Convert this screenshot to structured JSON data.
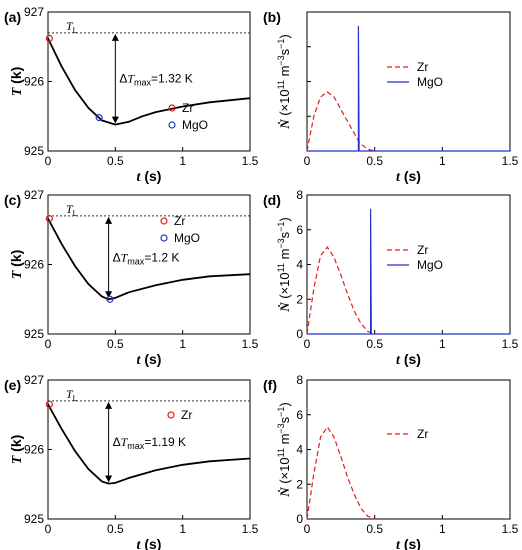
{
  "chart_data": [
    {
      "panel": "(a)",
      "type": "line",
      "xlabel": "t (s)",
      "ylabel": "T (k)",
      "xlim": [
        0,
        1.5
      ],
      "ylim": [
        925,
        927
      ],
      "xticks": [
        "0",
        "0.5",
        "1",
        "1.5"
      ],
      "yticks": [
        "925",
        "926",
        "927"
      ],
      "series": [
        {
          "color": "#000000",
          "style": "solid",
          "x": [
            0,
            0.1,
            0.2,
            0.3,
            0.4,
            0.5,
            0.6,
            0.7,
            0.8,
            1.0,
            1.2,
            1.5
          ],
          "y": [
            926.62,
            926.22,
            925.88,
            925.62,
            925.44,
            925.38,
            925.42,
            925.5,
            925.56,
            925.64,
            925.7,
            925.76
          ]
        }
      ],
      "ref_line": {
        "y": 926.7,
        "label": "TL"
      },
      "markers": [
        {
          "name": "Zr",
          "x": 0.01,
          "y": 926.62,
          "color": "#e41a1c"
        },
        {
          "name": "MgO",
          "x": 0.38,
          "y": 925.48,
          "color": "#2233cc"
        }
      ],
      "annotation": {
        "text": "ΔTmax=1.32 K",
        "x": 0.5,
        "y_top": 926.7,
        "y_bottom": 925.38
      }
    },
    {
      "panel": "(b)",
      "type": "line",
      "xlabel": "t (s)",
      "ylabel": "Ṅ (×10^11 m^-3 s^-1)",
      "xlim": [
        0,
        1.5
      ],
      "ylim": [
        0,
        8
      ],
      "xticks": [
        "0",
        "0.5",
        "1",
        "1.5"
      ],
      "yticks": [],
      "series": [
        {
          "name": "Zr",
          "color": "#e41a1c",
          "style": "dashed",
          "x": [
            0,
            0.05,
            0.1,
            0.15,
            0.2,
            0.25,
            0.3,
            0.35,
            0.38,
            0.4,
            0.45,
            0.5
          ],
          "y": [
            0,
            2.0,
            3.1,
            3.4,
            3.1,
            2.4,
            1.7,
            1.0,
            0.6,
            0.4,
            0.1,
            0
          ]
        },
        {
          "name": "MgO",
          "color": "#2233cc",
          "style": "solid",
          "x": [
            0,
            0.38,
            0.38,
            0.385,
            1.5
          ],
          "y": [
            0,
            0,
            7.2,
            0,
            0
          ]
        }
      ]
    },
    {
      "panel": "(c)",
      "type": "line",
      "xlabel": "t (s)",
      "ylabel": "T (k)",
      "xlim": [
        0,
        1.5
      ],
      "ylim": [
        925,
        927
      ],
      "xticks": [
        "0",
        "0.5",
        "1",
        "1.5"
      ],
      "yticks": [
        "925",
        "926",
        "927"
      ],
      "series": [
        {
          "color": "#000000",
          "style": "solid",
          "x": [
            0,
            0.1,
            0.2,
            0.3,
            0.4,
            0.45,
            0.5,
            0.6,
            0.8,
            1.0,
            1.2,
            1.5
          ],
          "y": [
            926.66,
            926.3,
            925.98,
            925.72,
            925.54,
            925.5,
            925.52,
            925.6,
            925.7,
            925.78,
            925.83,
            925.86
          ]
        }
      ],
      "ref_line": {
        "y": 926.7,
        "label": "TL"
      },
      "markers": [
        {
          "name": "Zr",
          "x": 0.01,
          "y": 926.66,
          "color": "#e41a1c"
        },
        {
          "name": "MgO",
          "x": 0.46,
          "y": 925.5,
          "color": "#2233cc"
        }
      ],
      "annotation": {
        "text": "ΔTmax=1.2 K",
        "x": 0.45,
        "y_top": 926.7,
        "y_bottom": 925.5
      }
    },
    {
      "panel": "(d)",
      "type": "line",
      "xlabel": "t (s)",
      "ylabel": "Ṅ (×10^11 m^-3 s^-1)",
      "xlim": [
        0,
        1.5
      ],
      "ylim": [
        0,
        8
      ],
      "xticks": [
        "0",
        "0.5",
        "1",
        "1.5"
      ],
      "yticks": [
        "0",
        "2",
        "4",
        "6",
        "8"
      ],
      "series": [
        {
          "name": "Zr",
          "color": "#e41a1c",
          "style": "dashed",
          "x": [
            0,
            0.05,
            0.1,
            0.15,
            0.2,
            0.25,
            0.3,
            0.35,
            0.4,
            0.45,
            0.5
          ],
          "y": [
            0,
            2.6,
            4.5,
            5.0,
            4.4,
            3.4,
            2.3,
            1.3,
            0.6,
            0.15,
            0
          ]
        },
        {
          "name": "MgO",
          "color": "#2233cc",
          "style": "solid",
          "x": [
            0,
            0.47,
            0.47,
            0.475,
            1.5
          ],
          "y": [
            0,
            0,
            7.2,
            0,
            0
          ]
        }
      ]
    },
    {
      "panel": "(e)",
      "type": "line",
      "xlabel": "t (s)",
      "ylabel": "T (k)",
      "xlim": [
        0,
        1.5
      ],
      "ylim": [
        925,
        927
      ],
      "xticks": [
        "0",
        "0.5",
        "1",
        "1.5"
      ],
      "yticks": [
        "925",
        "926",
        "927"
      ],
      "series": [
        {
          "color": "#000000",
          "style": "solid",
          "x": [
            0,
            0.1,
            0.2,
            0.3,
            0.4,
            0.45,
            0.5,
            0.6,
            0.8,
            1.0,
            1.2,
            1.5
          ],
          "y": [
            926.65,
            926.3,
            925.98,
            925.72,
            925.54,
            925.51,
            925.52,
            925.59,
            925.7,
            925.78,
            925.83,
            925.87
          ]
        }
      ],
      "ref_line": {
        "y": 926.7,
        "label": "TL"
      },
      "markers": [
        {
          "name": "Zr",
          "x": 0.01,
          "y": 926.65,
          "color": "#e41a1c"
        }
      ],
      "annotation": {
        "text": "ΔTmax=1.19 K",
        "x": 0.45,
        "y_top": 926.7,
        "y_bottom": 925.51
      }
    },
    {
      "panel": "(f)",
      "type": "line",
      "xlabel": "t (s)",
      "ylabel": "Ṅ (×10^11 m^-3 s^-1)",
      "xlim": [
        0,
        1.5
      ],
      "ylim": [
        0,
        8
      ],
      "xticks": [
        "0",
        "0.5",
        "1",
        "1.5"
      ],
      "yticks": [
        "0",
        "2",
        "4",
        "6",
        "8"
      ],
      "series": [
        {
          "name": "Zr",
          "color": "#e41a1c",
          "style": "dashed",
          "x": [
            0,
            0.05,
            0.1,
            0.15,
            0.2,
            0.25,
            0.3,
            0.35,
            0.4,
            0.45,
            0.5
          ],
          "y": [
            0,
            2.6,
            4.7,
            5.3,
            4.7,
            3.6,
            2.4,
            1.4,
            0.6,
            0.15,
            0
          ]
        }
      ]
    }
  ]
}
